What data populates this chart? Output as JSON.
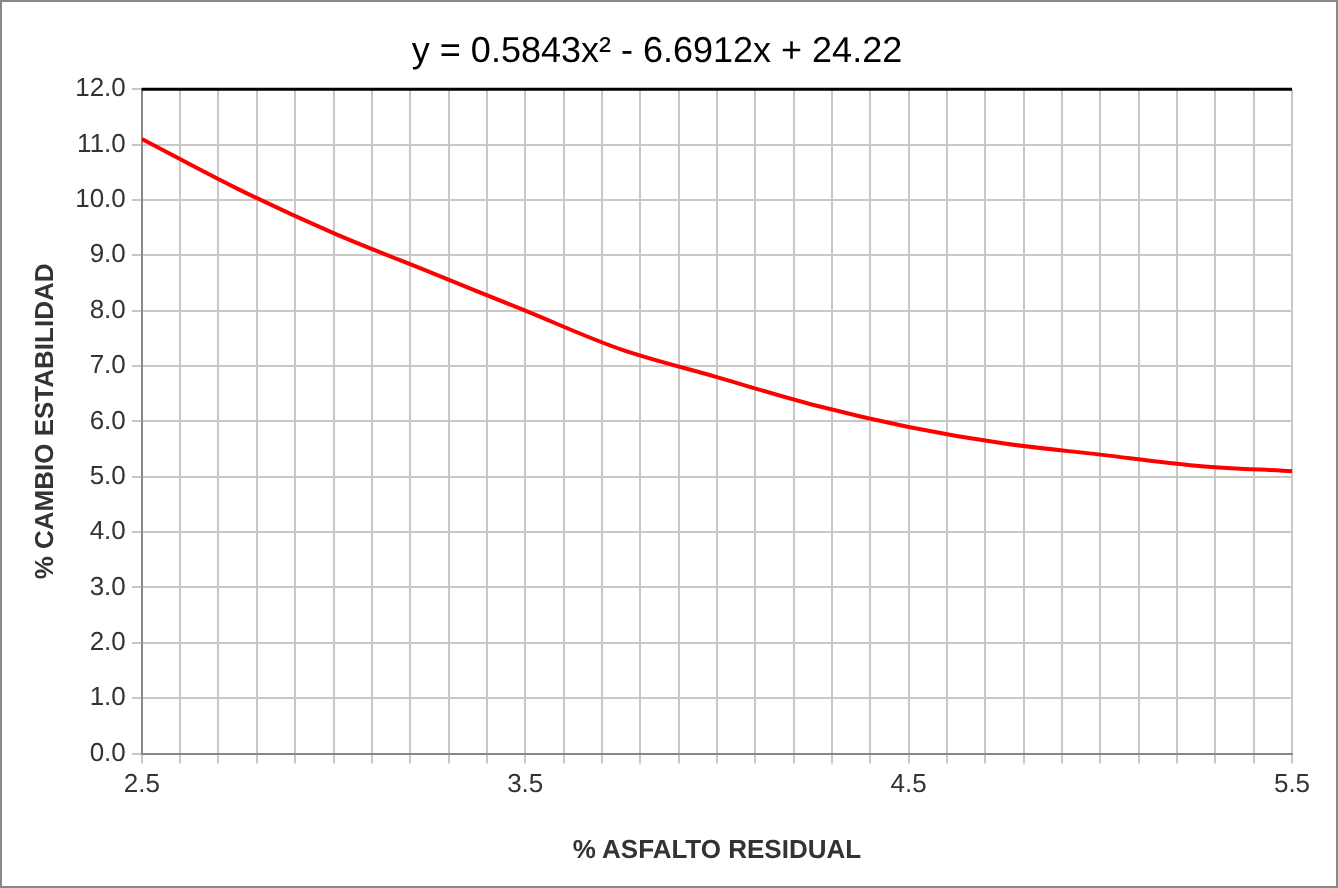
{
  "chart_data": {
    "type": "line",
    "title": "y = 0.5843x² - 6.6912x + 24.22",
    "xlabel": "% ASFALTO RESIDUAL",
    "ylabel": "% CAMBIO ESTABILIDAD",
    "x": [
      2.5,
      2.75,
      3.0,
      3.25,
      3.5,
      3.75,
      4.0,
      4.25,
      4.5,
      4.75,
      5.0,
      5.25,
      5.5
    ],
    "series": [
      {
        "color": "#ff0000",
        "values": [
          11.1,
          10.2,
          9.4,
          8.7,
          8.0,
          7.3,
          6.8,
          6.3,
          5.9,
          5.6,
          5.4,
          5.2,
          5.1
        ]
      }
    ],
    "xlim": [
      2.5,
      5.5
    ],
    "xticks": [
      2.5,
      {
        "value": 2.6,
        "label": null
      },
      {
        "value": 2.7,
        "label": null
      },
      {
        "value": 2.8,
        "label": null
      },
      {
        "value": 2.9,
        "label": null
      },
      {
        "value": 3.0,
        "label": null
      },
      {
        "value": 3.1,
        "label": null
      },
      {
        "value": 3.2,
        "label": null
      },
      {
        "value": 3.3,
        "label": null
      },
      {
        "value": 3.4,
        "label": null
      },
      3.5,
      {
        "value": 3.6,
        "label": null
      },
      {
        "value": 3.7,
        "label": null
      },
      {
        "value": 3.8,
        "label": null
      },
      {
        "value": 3.9,
        "label": null
      },
      {
        "value": 4.0,
        "label": null
      },
      {
        "value": 4.1,
        "label": null
      },
      {
        "value": 4.2,
        "label": null
      },
      {
        "value": 4.3,
        "label": null
      },
      {
        "value": 4.4,
        "label": null
      },
      4.5,
      {
        "value": 4.6,
        "label": null
      },
      {
        "value": 4.7,
        "label": null
      },
      {
        "value": 4.8,
        "label": null
      },
      {
        "value": 4.9,
        "label": null
      },
      {
        "value": 5.0,
        "label": null
      },
      {
        "value": 5.1,
        "label": null
      },
      {
        "value": 5.2,
        "label": null
      },
      {
        "value": 5.3,
        "label": null
      },
      {
        "value": 5.4,
        "label": null
      },
      5.5
    ],
    "ylim": [
      0,
      12
    ],
    "yticks": [
      {
        "value": 0,
        "label": "0.0"
      },
      {
        "value": 1,
        "label": "1.0"
      },
      {
        "value": 2,
        "label": "2.0"
      },
      {
        "value": 3,
        "label": "3.0"
      },
      {
        "value": 4,
        "label": "4.0"
      },
      {
        "value": 5,
        "label": "5.0"
      },
      {
        "value": 6,
        "label": "6.0"
      },
      {
        "value": 7,
        "label": "7.0"
      },
      {
        "value": 8,
        "label": "8.0"
      },
      {
        "value": 9,
        "label": "9.0"
      },
      {
        "value": 10,
        "label": "10.0"
      },
      {
        "value": 11,
        "label": "11.0"
      },
      {
        "value": 12,
        "label": "12.0"
      }
    ],
    "grid": true,
    "legend": false,
    "marker": "none",
    "line_style": "solid"
  }
}
